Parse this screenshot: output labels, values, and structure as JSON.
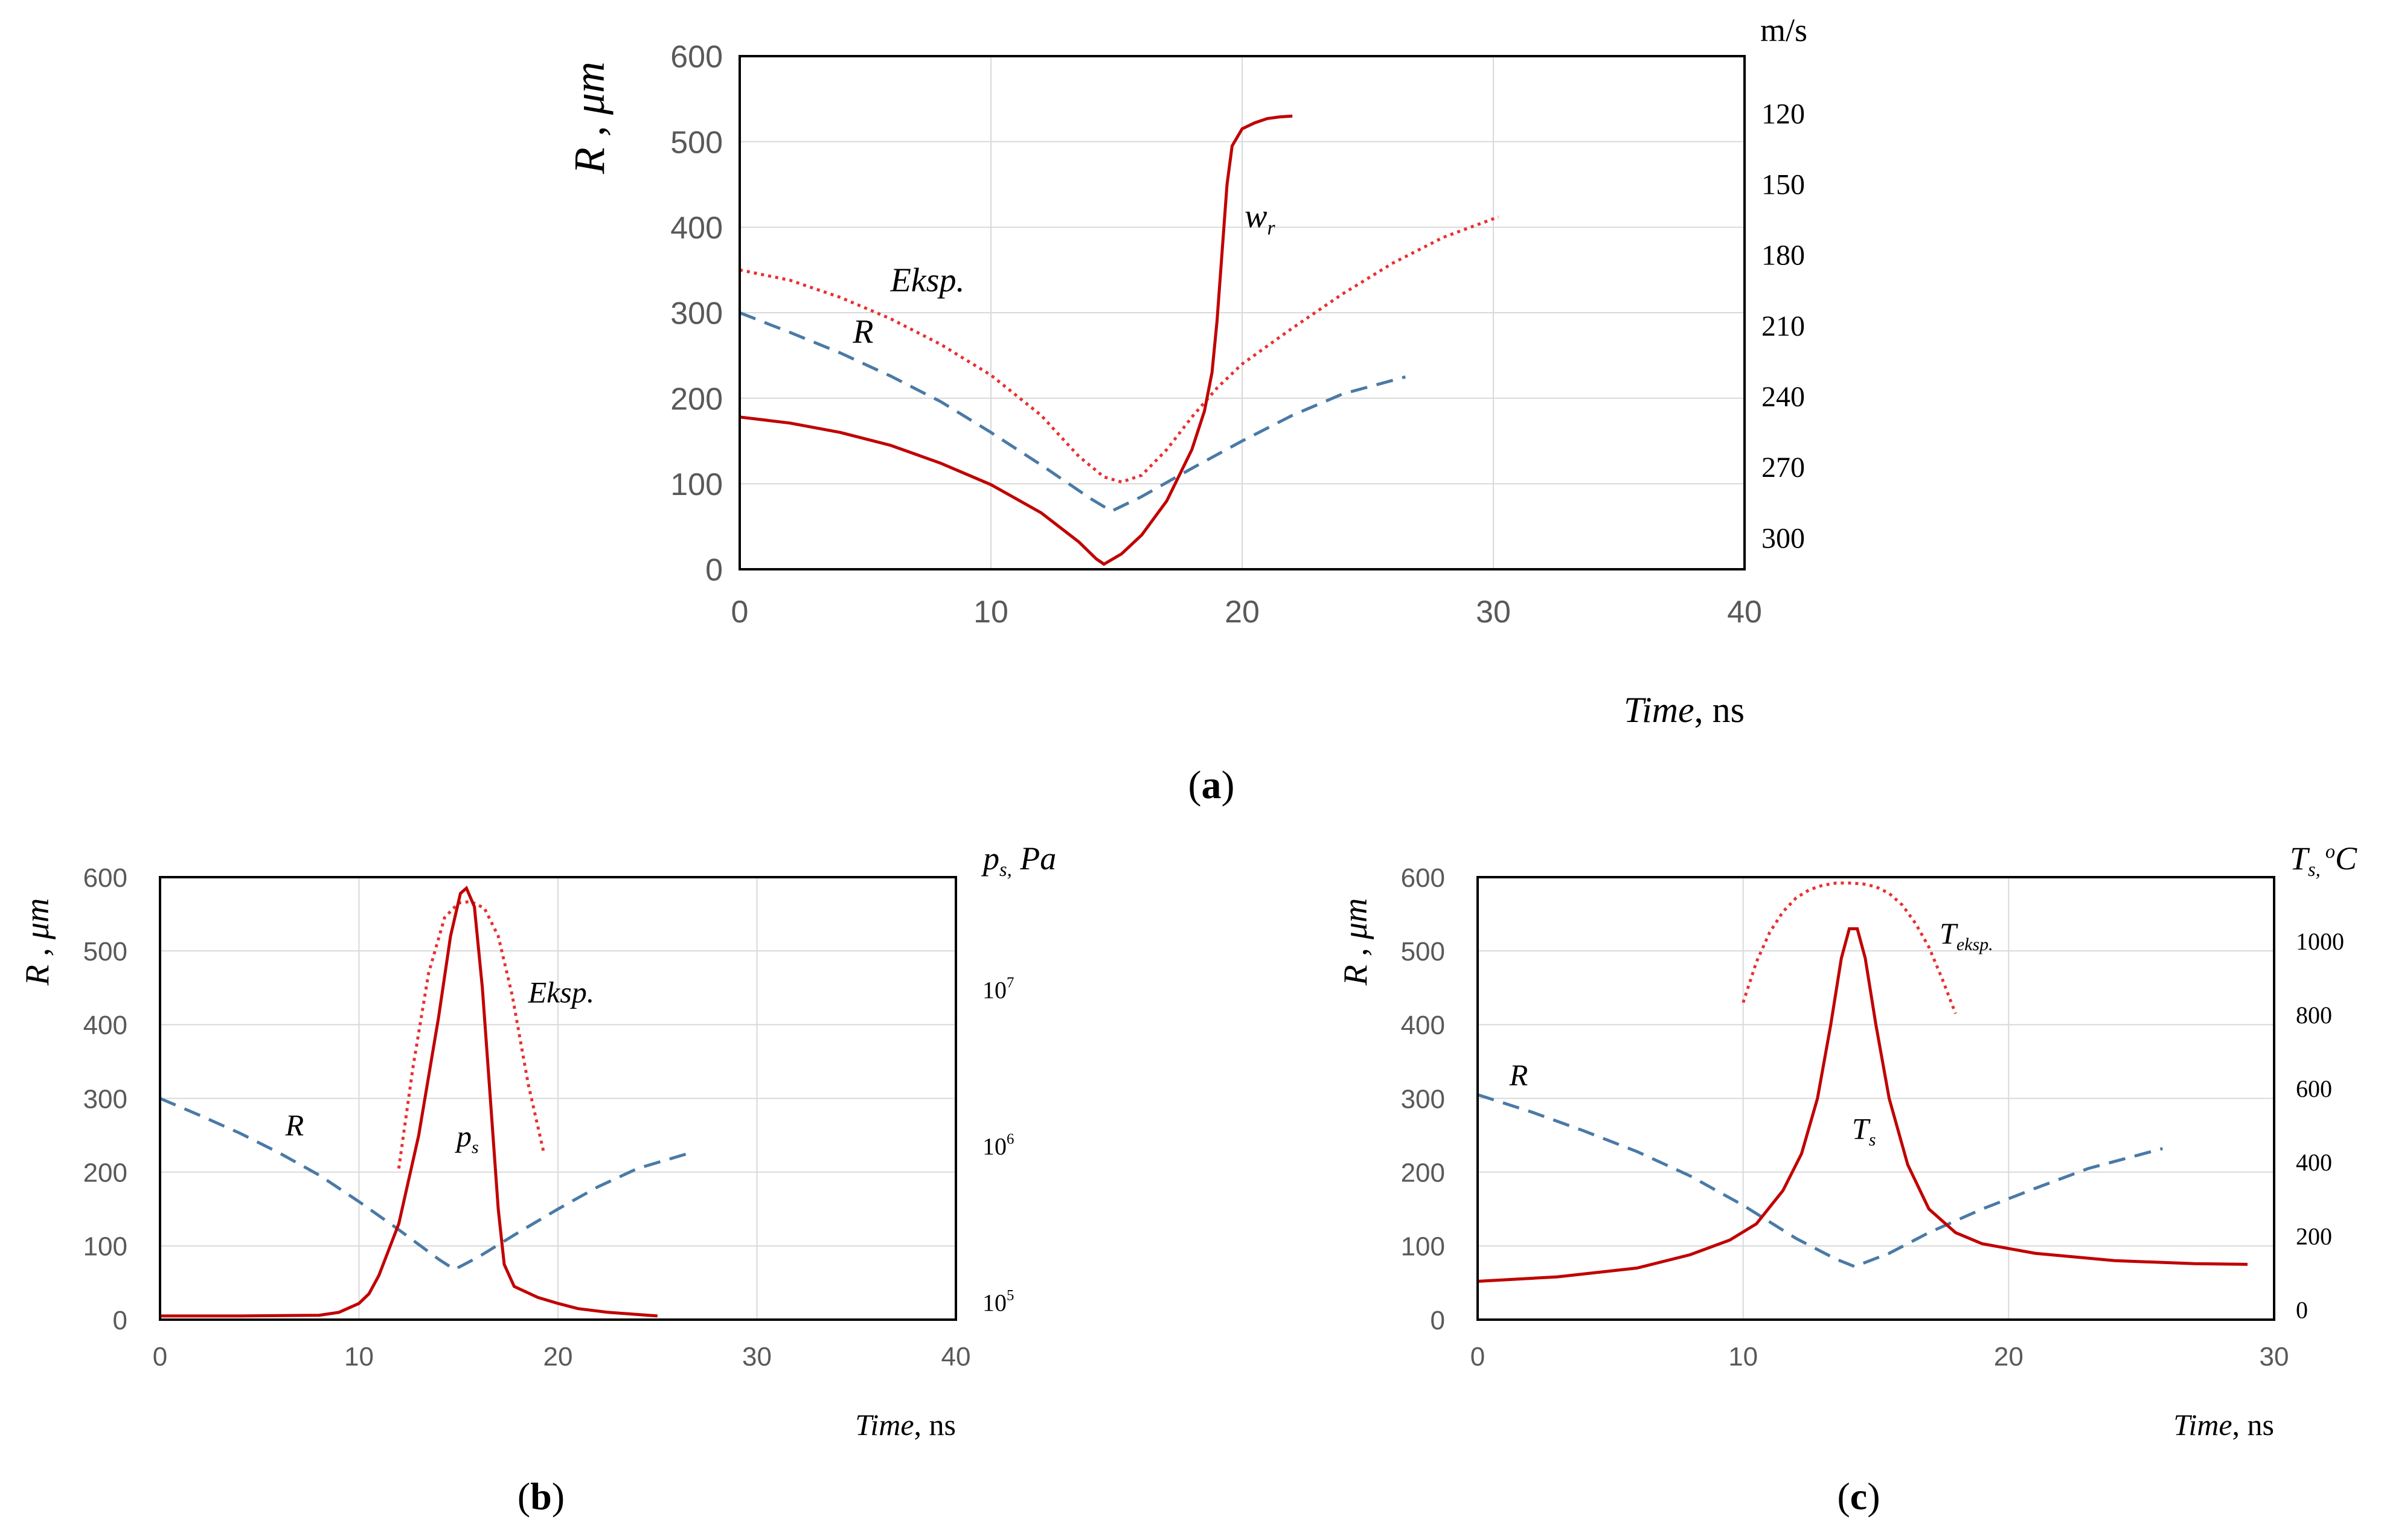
{
  "colors": {
    "r_curve": "#4a7aa6",
    "sim_curve": "#c00000",
    "exp_curve": "#e83030",
    "axis_text": "#595959",
    "grid": "#d9d9d9"
  },
  "chart_data": [
    {
      "id": "a",
      "type": "line",
      "panel_label": {
        "open": "(",
        "letter": "a",
        "close": ")"
      },
      "ylabel": {
        "main": "R",
        "sep": " ,  ",
        "unit": "μm"
      },
      "ylim": [
        0,
        600
      ],
      "yticks": [
        "0",
        "100",
        "200",
        "300",
        "400",
        "500",
        "600"
      ],
      "xlim": [
        0,
        40
      ],
      "xticks": [
        "0",
        "10",
        "20",
        "30",
        "40"
      ],
      "xlabel": {
        "main": "Time",
        "unit": ", ns"
      },
      "right_axis": {
        "title": "m/s",
        "ticks": [
          {
            "label": "120",
            "value": 120
          },
          {
            "label": "150",
            "value": 150
          },
          {
            "label": "180",
            "value": 180
          },
          {
            "label": "210",
            "value": 210
          },
          {
            "label": "240",
            "value": 240
          },
          {
            "label": "270",
            "value": 270
          },
          {
            "label": "300",
            "value": 300
          }
        ]
      },
      "series": [
        {
          "name": "R",
          "label": "R",
          "style": "r",
          "label_at": [
            4.5,
            265
          ],
          "x": [
            0,
            2,
            4,
            6,
            8,
            10,
            12,
            14,
            14.8,
            16,
            18,
            20,
            22,
            24,
            26.5
          ],
          "y": [
            300,
            277,
            253,
            226,
            196,
            160,
            122,
            82,
            68,
            85,
            118,
            150,
            180,
            205,
            225
          ]
        },
        {
          "name": "Eksp.",
          "label": "Eksp.",
          "style": "e",
          "label_at": [
            6,
            325
          ],
          "x": [
            0,
            2,
            4,
            6,
            8,
            10,
            12,
            13.5,
            14.5,
            15.2,
            16,
            17,
            18,
            19,
            20,
            22,
            24,
            26,
            28,
            30.2
          ],
          "y": [
            350,
            338,
            318,
            293,
            263,
            227,
            180,
            132,
            108,
            102,
            110,
            140,
            178,
            212,
            240,
            282,
            322,
            358,
            388,
            412
          ]
        },
        {
          "name": "wr",
          "label": "w",
          "label_sub": "r",
          "style": "s",
          "label_at": [
            20.1,
            400
          ],
          "x": [
            0,
            2,
            4,
            6,
            8,
            10,
            12,
            13.5,
            14.2,
            14.5,
            15.2,
            16,
            17,
            18,
            18.5,
            18.8,
            19,
            19.2,
            19.4,
            19.6,
            20,
            20.5,
            21,
            21.5,
            22
          ],
          "y": [
            178,
            171,
            160,
            145,
            124,
            99,
            66,
            32,
            12,
            6,
            18,
            40,
            80,
            140,
            185,
            230,
            290,
            370,
            450,
            495,
            515,
            522,
            527,
            529,
            530
          ]
        }
      ]
    },
    {
      "id": "b",
      "type": "line",
      "panel_label": {
        "open": "(",
        "letter": "b",
        "close": ")"
      },
      "ylabel": {
        "main": "R",
        "sep": " ,  ",
        "unit": "μm"
      },
      "ylim": [
        0,
        600
      ],
      "yticks": [
        "0",
        "100",
        "200",
        "300",
        "400",
        "500",
        "600"
      ],
      "xlim": [
        0,
        40
      ],
      "xticks": [
        "0",
        "10",
        "20",
        "30",
        "40"
      ],
      "xlabel": {
        "main": "Time",
        "unit": ", ns"
      },
      "right_axis": {
        "title": "p",
        "title_sub": "s,",
        "title_unit": " Pa",
        "ticks": [
          {
            "label": "10",
            "exp": "5",
            "value": 100000
          },
          {
            "label": "10",
            "exp": "6",
            "value": 1000000
          },
          {
            "label": "10",
            "exp": "7",
            "value": 10000000
          }
        ]
      },
      "series": [
        {
          "name": "R",
          "label": "R",
          "style": "r",
          "label_at": [
            6.3,
            250
          ],
          "x": [
            0,
            2,
            4,
            6,
            8,
            10,
            12,
            14,
            14.8,
            16,
            18,
            20,
            22,
            24,
            26.5
          ],
          "y": [
            300,
            277,
            253,
            226,
            196,
            160,
            122,
            82,
            68,
            85,
            118,
            150,
            180,
            205,
            225
          ]
        },
        {
          "name": "Eksp.",
          "label": "Eksp.",
          "style": "e",
          "label_at": [
            18.5,
            430
          ],
          "x": [
            12,
            12.7,
            13.5,
            14.3,
            15,
            15.6,
            16.3,
            17,
            17.7,
            18.5,
            19.3
          ],
          "y": [
            205,
            340,
            470,
            545,
            565,
            567,
            558,
            520,
            440,
            320,
            225
          ]
        },
        {
          "name": "ps",
          "label": "p",
          "label_sub": "s",
          "style": "s",
          "label_at": [
            14.9,
            235
          ],
          "x": [
            0,
            4,
            8,
            9,
            10,
            10.5,
            11,
            12,
            13,
            14,
            14.6,
            15.1,
            15.4,
            15.8,
            16.2,
            16.6,
            17,
            17.3,
            17.8,
            19,
            20,
            21,
            22.5,
            25
          ],
          "y": [
            5,
            5,
            6,
            10,
            22,
            35,
            60,
            130,
            250,
            410,
            520,
            578,
            585,
            560,
            450,
            300,
            150,
            75,
            45,
            30,
            22,
            15,
            10,
            5
          ]
        }
      ]
    },
    {
      "id": "c",
      "type": "line",
      "panel_label": {
        "open": "(",
        "letter": "c",
        "close": ")"
      },
      "ylabel": {
        "main": "R",
        "sep": " ,  ",
        "unit": "μm"
      },
      "ylim": [
        0,
        600
      ],
      "yticks": [
        "0",
        "100",
        "200",
        "300",
        "400",
        "500",
        "600"
      ],
      "xlim": [
        0,
        30
      ],
      "xticks": [
        "0",
        "10",
        "20",
        "30"
      ],
      "xlabel": {
        "main": "Time",
        "unit": ", ns"
      },
      "right_axis": {
        "title": "T",
        "title_sub": "s,",
        "title_sup": " o",
        "title_unit": "C",
        "ticks": [
          {
            "label": "0",
            "value": 0
          },
          {
            "label": "200",
            "value": 200
          },
          {
            "label": "400",
            "value": 400
          },
          {
            "label": "600",
            "value": 600
          },
          {
            "label": "800",
            "value": 800
          },
          {
            "label": "1000",
            "value": 1000
          }
        ]
      },
      "series": [
        {
          "name": "R",
          "label": "R",
          "style": "r",
          "label_at": [
            1.2,
            318
          ],
          "x": [
            0,
            2,
            4,
            6,
            8,
            10,
            12,
            13.5,
            14.2,
            15.5,
            17,
            19,
            21,
            23,
            25.8
          ],
          "y": [
            305,
            282,
            256,
            228,
            195,
            155,
            110,
            82,
            72,
            90,
            118,
            150,
            178,
            205,
            232
          ]
        },
        {
          "name": "Teksp.",
          "label": "T",
          "label_sub": "eksp.",
          "style": "e",
          "label_at": [
            17.4,
            510
          ],
          "x": [
            10,
            10.5,
            11,
            11.5,
            12,
            12.5,
            13,
            13.5,
            14,
            14.5,
            15,
            15.5,
            16,
            16.5,
            17,
            17.5,
            18
          ],
          "y": [
            430,
            485,
            525,
            553,
            572,
            583,
            589,
            592,
            592,
            591,
            587,
            578,
            562,
            537,
            505,
            462,
            415
          ]
        },
        {
          "name": "Ts",
          "label": "T",
          "label_sub": "s",
          "style": "s",
          "label_at": [
            14.1,
            245
          ],
          "x": [
            0,
            3,
            6,
            8,
            9.5,
            10.5,
            11.5,
            12.2,
            12.8,
            13.3,
            13.7,
            14,
            14.3,
            14.6,
            15,
            15.5,
            16.2,
            17,
            18,
            19,
            21,
            24,
            27,
            29
          ],
          "y": [
            52,
            58,
            70,
            88,
            108,
            130,
            175,
            225,
            300,
            400,
            490,
            530,
            530,
            490,
            400,
            300,
            210,
            150,
            118,
            103,
            90,
            80,
            76,
            75
          ]
        }
      ]
    }
  ]
}
